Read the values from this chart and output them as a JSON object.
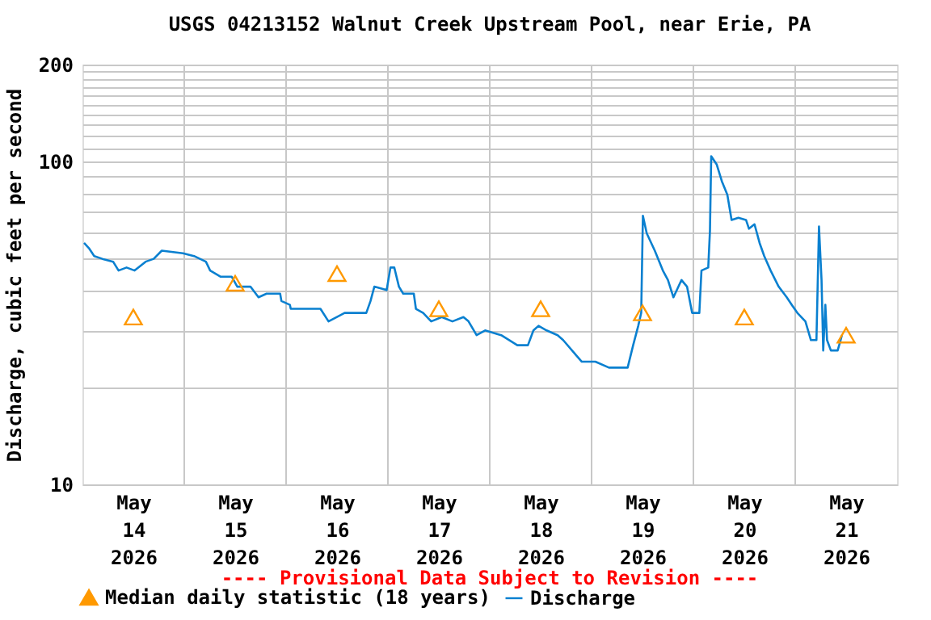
{
  "chart_data": {
    "type": "line",
    "title": "USGS 04213152 Walnut Creek Upstream Pool, near Erie, PA",
    "ylabel": "Discharge, cubic feet per second",
    "annotations": [
      "---- Provisional Data Subject to Revision ----"
    ],
    "log": "y",
    "grid": true,
    "legend": "bottom",
    "xlim": [
      "2026-05-14T00:00",
      "2026-05-22T00:00"
    ],
    "xticks": [
      {
        "value": "2026-05-14T12:00",
        "label": "May\n14\n2026"
      },
      {
        "value": "2026-05-15T00:00",
        "label": null
      },
      {
        "value": "2026-05-15T12:00",
        "label": "May\n15\n2026"
      },
      {
        "value": "2026-05-16T00:00",
        "label": null
      },
      {
        "value": "2026-05-16T12:00",
        "label": "May\n16\n2026"
      },
      {
        "value": "2026-05-17T00:00",
        "label": null
      },
      {
        "value": "2026-05-17T12:00",
        "label": "May\n17\n2026"
      },
      {
        "value": "2026-05-18T00:00",
        "label": null
      },
      {
        "value": "2026-05-18T12:00",
        "label": "May\n18\n2026"
      },
      {
        "value": "2026-05-19T00:00",
        "label": null
      },
      {
        "value": "2026-05-19T12:00",
        "label": "May\n19\n2026"
      },
      {
        "value": "2026-05-20T00:00",
        "label": null
      },
      {
        "value": "2026-05-20T12:00",
        "label": "May\n20\n2026"
      },
      {
        "value": "2026-05-21T00:00",
        "label": null
      },
      {
        "value": "2026-05-21T12:00",
        "label": "May\n21\n2026"
      }
    ],
    "ylim": [
      10,
      200
    ],
    "yticks": [
      10,
      {
        "value": 20,
        "label": null
      },
      {
        "value": 30,
        "label": null
      },
      {
        "value": 40,
        "label": null
      },
      {
        "value": 50,
        "label": null
      },
      {
        "value": 60,
        "label": null
      },
      {
        "value": 70,
        "label": null
      },
      {
        "value": 80,
        "label": null
      },
      {
        "value": 90,
        "label": null
      },
      100,
      {
        "value": 110,
        "label": null
      },
      {
        "value": 120,
        "label": null
      },
      {
        "value": 130,
        "label": null
      },
      {
        "value": 140,
        "label": null
      },
      {
        "value": 150,
        "label": null
      },
      {
        "value": 160,
        "label": null
      },
      {
        "value": 170,
        "label": null
      },
      {
        "value": 180,
        "label": null
      },
      {
        "value": 190,
        "label": null
      },
      200
    ],
    "series": [
      {
        "name": "Median daily statistic (18 years)",
        "type": "scatter",
        "marker": "triangle",
        "color": "#ff9900",
        "x": [
          "2026-05-14T12:00",
          "2026-05-15T12:00",
          "2026-05-16T12:00",
          "2026-05-17T12:00",
          "2026-05-18T12:00",
          "2026-05-19T12:00",
          "2026-05-20T12:00",
          "2026-05-21T12:00"
        ],
        "values": [
          33,
          42,
          45,
          35,
          35,
          34,
          33,
          29
        ]
      },
      {
        "name": "Discharge",
        "type": "line",
        "color": "#0a80d0",
        "x": [
          "2026-05-14T00:23",
          "2026-05-14T01:31",
          "2026-05-14T02:47",
          "2026-05-14T04:42",
          "2026-05-14T07:14",
          "2026-05-14T08:31",
          "2026-05-14T10:24",
          "2026-05-14T12:18",
          "2026-05-14T14:54",
          "2026-05-14T16:48",
          "2026-05-14T18:42",
          "2026-05-14T23:42",
          "2026-05-15T02:18",
          "2026-05-15T05:06",
          "2026-05-15T06:06",
          "2026-05-15T08:36",
          "2026-05-15T11:12",
          "2026-05-15T12:30",
          "2026-05-15T15:36",
          "2026-05-15T17:30",
          "2026-05-15T19:24",
          "2026-05-15T22:36",
          "2026-05-15T22:54",
          "2026-05-16T00:54",
          "2026-05-16T01:06",
          "2026-05-16T08:06",
          "2026-05-16T10:00",
          "2026-05-16T13:48",
          "2026-05-16T18:54",
          "2026-05-16T19:54",
          "2026-05-16T20:48",
          "2026-05-16T23:42",
          "2026-05-17T00:36",
          "2026-05-17T01:30",
          "2026-05-17T02:36",
          "2026-05-17T03:36",
          "2026-05-17T06:06",
          "2026-05-17T06:36",
          "2026-05-17T08:18",
          "2026-05-17T10:12",
          "2026-05-17T12:42",
          "2026-05-17T15:12",
          "2026-05-17T17:48",
          "2026-05-17T19:00",
          "2026-05-17T20:54",
          "2026-05-17T22:54",
          "2026-05-18T02:42",
          "2026-05-18T06:30",
          "2026-05-18T09:00",
          "2026-05-18T10:18",
          "2026-05-18T11:30",
          "2026-05-18T13:24",
          "2026-05-18T16:00",
          "2026-05-18T17:18",
          "2026-05-18T20:30",
          "2026-05-18T21:42",
          "2026-05-19T00:54",
          "2026-05-19T04:06",
          "2026-05-19T08:30",
          "2026-05-19T09:48",
          "2026-05-19T11:00",
          "2026-05-19T11:42",
          "2026-05-19T12:06",
          "2026-05-19T13:00",
          "2026-05-19T14:54",
          "2026-05-19T16:48",
          "2026-05-19T18:00",
          "2026-05-19T19:18",
          "2026-05-19T21:12",
          "2026-05-19T22:30",
          "2026-05-19T23:42",
          "2026-05-20T01:24",
          "2026-05-20T01:54",
          "2026-05-20T03:30",
          "2026-05-20T03:54",
          "2026-05-20T04:12",
          "2026-05-20T05:30",
          "2026-05-20T06:42",
          "2026-05-20T08:00",
          "2026-05-20T09:00",
          "2026-05-20T10:36",
          "2026-05-20T12:24",
          "2026-05-20T13:06",
          "2026-05-20T14:24",
          "2026-05-20T15:36",
          "2026-05-20T16:42",
          "2026-05-20T18:12",
          "2026-05-20T20:06",
          "2026-05-20T22:00",
          "2026-05-20T23:12",
          "2026-05-21T00:30",
          "2026-05-21T02:24",
          "2026-05-21T03:42",
          "2026-05-21T05:00",
          "2026-05-21T05:36",
          "2026-05-21T06:12",
          "2026-05-21T06:36",
          "2026-05-21T07:06",
          "2026-05-21T07:30",
          "2026-05-21T08:24",
          "2026-05-21T10:00",
          "2026-05-21T10:42",
          "2026-05-21T11:00"
        ],
        "values": [
          56,
          54,
          51,
          50,
          49,
          46,
          47,
          46,
          49,
          50,
          53,
          52,
          51,
          49,
          46,
          44,
          44,
          41,
          41,
          38,
          39,
          39,
          37,
          36,
          35,
          35,
          32,
          34,
          34,
          37,
          41,
          40,
          47,
          47,
          41,
          39,
          39,
          35,
          34,
          32,
          33,
          32,
          33,
          32,
          29,
          30,
          29,
          27,
          27,
          30,
          31,
          30,
          29,
          28,
          25,
          24,
          24,
          23,
          23,
          27,
          31,
          34,
          68,
          60,
          53,
          46,
          43,
          38,
          43,
          41,
          34,
          34,
          46,
          47,
          61,
          104,
          98,
          87,
          79,
          66,
          67,
          66,
          62,
          64,
          56,
          51,
          46,
          41,
          38,
          36,
          34,
          32,
          28,
          28,
          63,
          43,
          26,
          36,
          28,
          26,
          26,
          28,
          29
        ]
      }
    ]
  }
}
